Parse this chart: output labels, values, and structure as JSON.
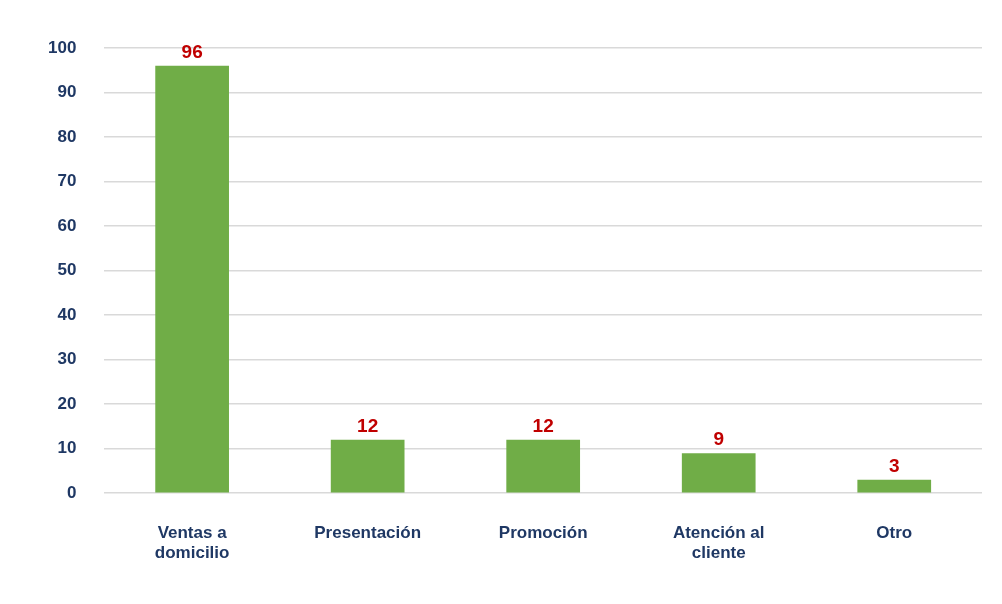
{
  "chart_data": {
    "type": "bar",
    "categories": [
      "Ventas a domicilio",
      "Presentación",
      "Promoción",
      "Atención al cliente",
      "Otro"
    ],
    "values": [
      96,
      12,
      12,
      9,
      3
    ],
    "color": "#70ad47",
    "ylim": [
      0,
      100
    ],
    "yticks": [
      0,
      10,
      20,
      30,
      40,
      50,
      60,
      70,
      80,
      90,
      100
    ],
    "grid": "y",
    "legend": false,
    "data_labels": true
  }
}
